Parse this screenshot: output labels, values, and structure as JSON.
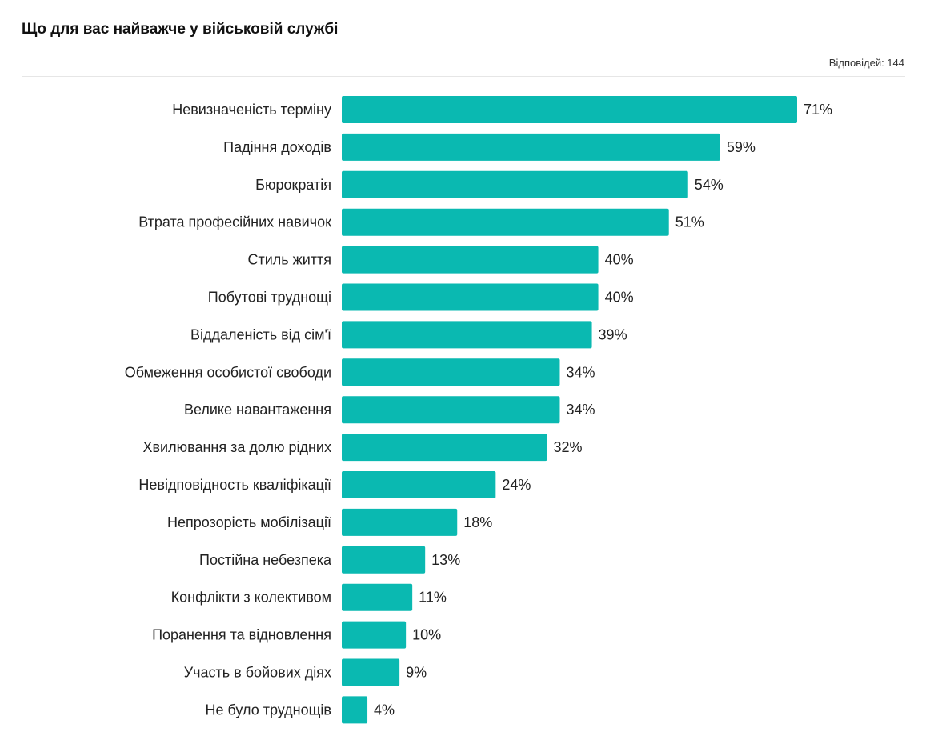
{
  "header": {
    "title": "Що для вас найважче у військовій службі",
    "responses": "Відповідей: 144"
  },
  "colors": {
    "bar": "#0ab9b1"
  },
  "chart_data": {
    "type": "bar",
    "orientation": "horizontal",
    "title": "Що для вас найважче у військовій службі",
    "unit": "%",
    "categories": [
      "Невизначеність терміну",
      "Падіння доходів",
      "Бюрократія",
      "Втрата професійних навичок",
      "Стиль життя",
      "Побутові труднощі",
      "Віддаленість від сім'ї",
      "Обмеження особистої свободи",
      "Велике навантаження",
      "Хвилювання за долю рідних",
      "Невідповідность кваліфікації",
      "Непрозорість мобілізації",
      "Постійна небезпека",
      "Конфлікти з колективом",
      "Поранення та відновлення",
      "Участь в бойових діях",
      "Не було труднощів"
    ],
    "values": [
      71,
      59,
      54,
      51,
      40,
      40,
      39,
      34,
      34,
      32,
      24,
      18,
      13,
      11,
      10,
      9,
      4
    ],
    "value_labels": [
      "71%",
      "59%",
      "54%",
      "51%",
      "40%",
      "40%",
      "39%",
      "34%",
      "34%",
      "32%",
      "24%",
      "18%",
      "13%",
      "11%",
      "10%",
      "9%",
      "4%"
    ],
    "xlim": [
      0,
      71
    ],
    "grid": false,
    "legend": "none"
  }
}
